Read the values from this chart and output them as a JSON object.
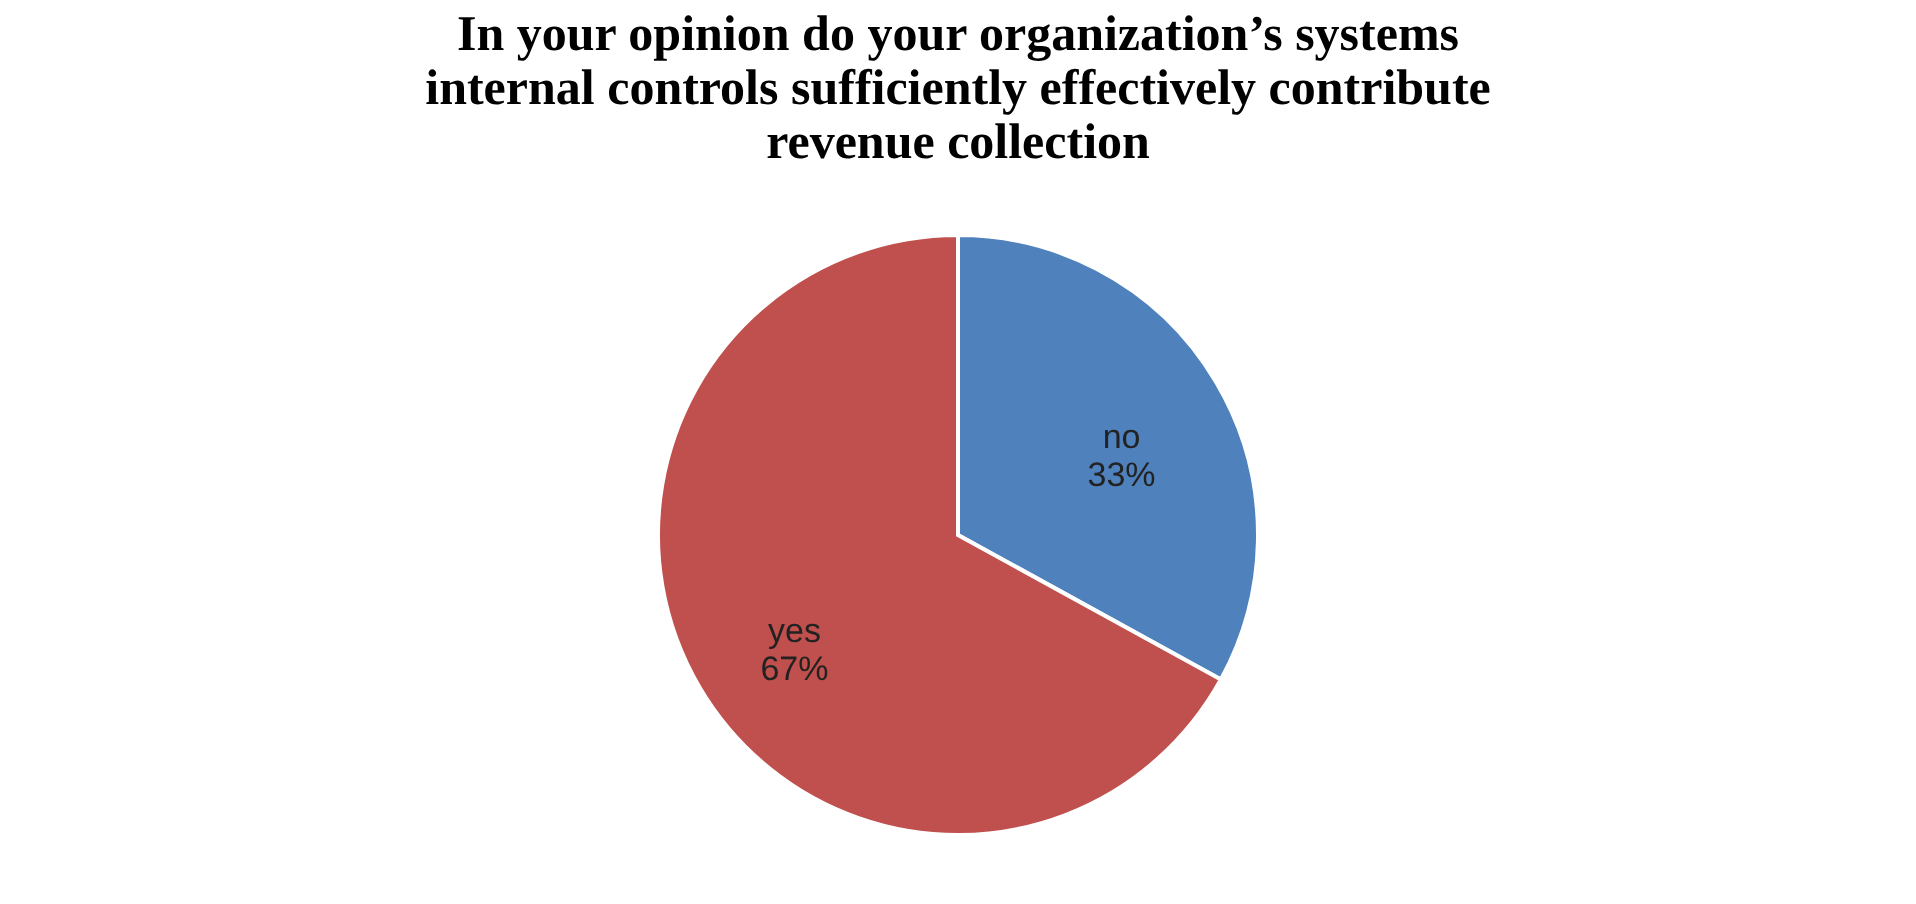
{
  "chart_data": {
    "type": "pie",
    "title": [
      "In your opinion do your organization’s systems",
      "internal controls sufficiently effectively contribute",
      "revenue collection"
    ],
    "categories": [
      "no",
      "yes"
    ],
    "values": [
      33,
      67
    ],
    "colors": [
      "#4f81bd",
      "#c0504d"
    ],
    "value_labels": [
      "33%",
      "67%"
    ],
    "legend": false
  }
}
